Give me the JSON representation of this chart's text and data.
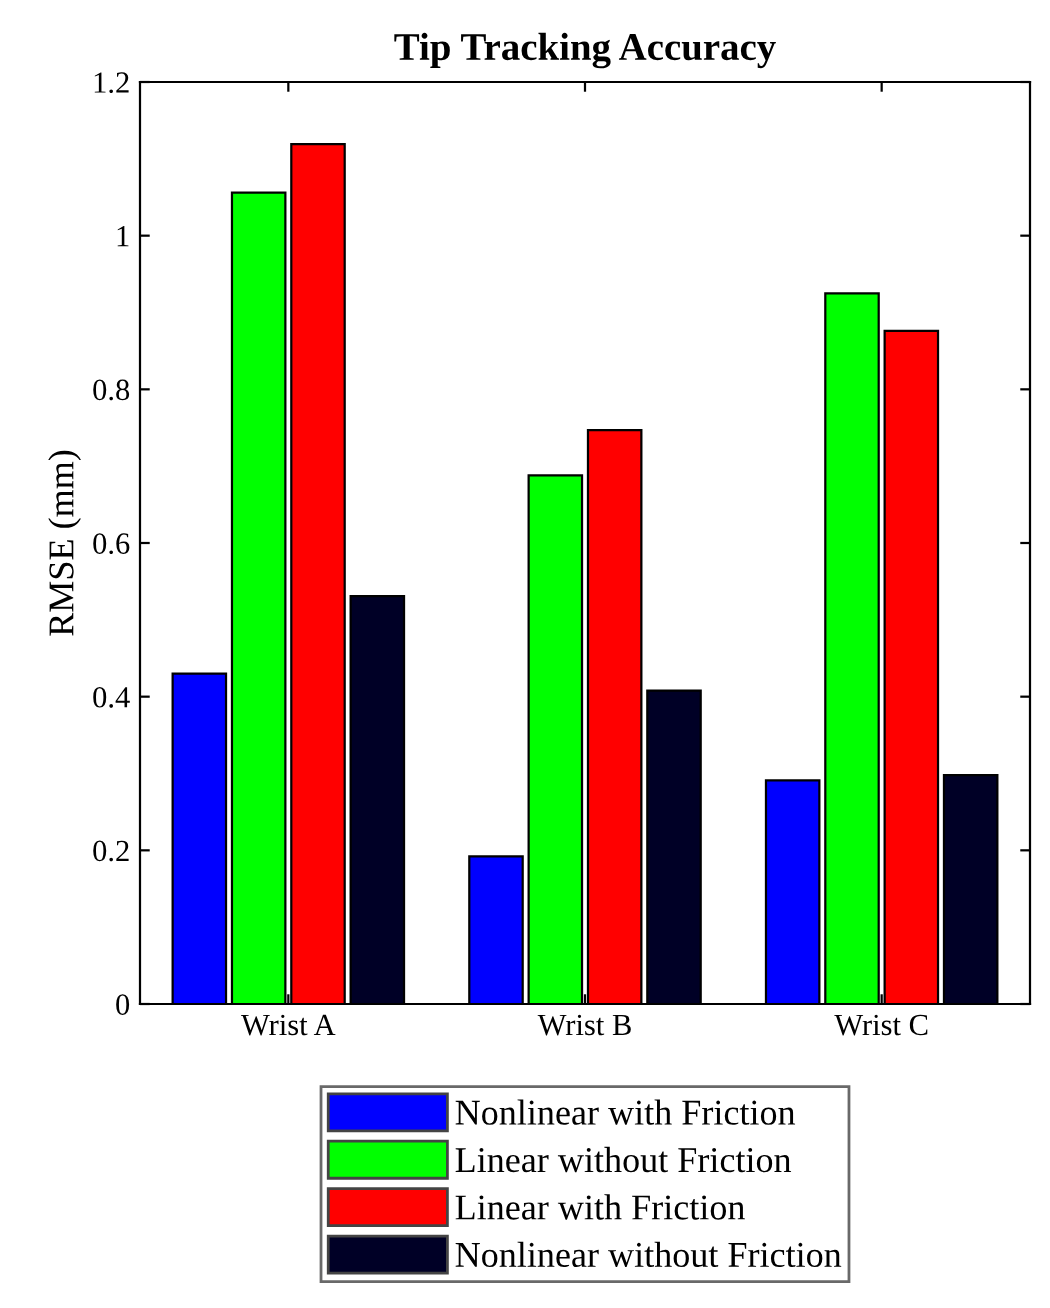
{
  "chart_data": {
    "type": "bar",
    "title": "Tip Tracking Accuracy",
    "ylabel": "RMSE (mm)",
    "categories": [
      "Wrist A",
      "Wrist B",
      "Wrist C"
    ],
    "series": [
      {
        "name": "Nonlinear with Friction",
        "color": "#0000ff",
        "values": [
          0.43,
          0.192,
          0.291
        ]
      },
      {
        "name": "Linear without Friction",
        "color": "#00ff00",
        "values": [
          1.056,
          0.688,
          0.925
        ]
      },
      {
        "name": "Linear with Friction",
        "color": "#ff0000",
        "values": [
          1.119,
          0.747,
          0.876
        ]
      },
      {
        "name": "Nonlinear without Friction",
        "color": "#000026",
        "values": [
          0.531,
          0.408,
          0.298
        ]
      }
    ],
    "ylim": [
      0,
      1.2
    ],
    "yticks": [
      0,
      0.2,
      0.4,
      {
        "value": 0.6,
        "label": "0.6"
      },
      0.8,
      1,
      1.2
    ],
    "grid": false,
    "legend": "bottom"
  }
}
